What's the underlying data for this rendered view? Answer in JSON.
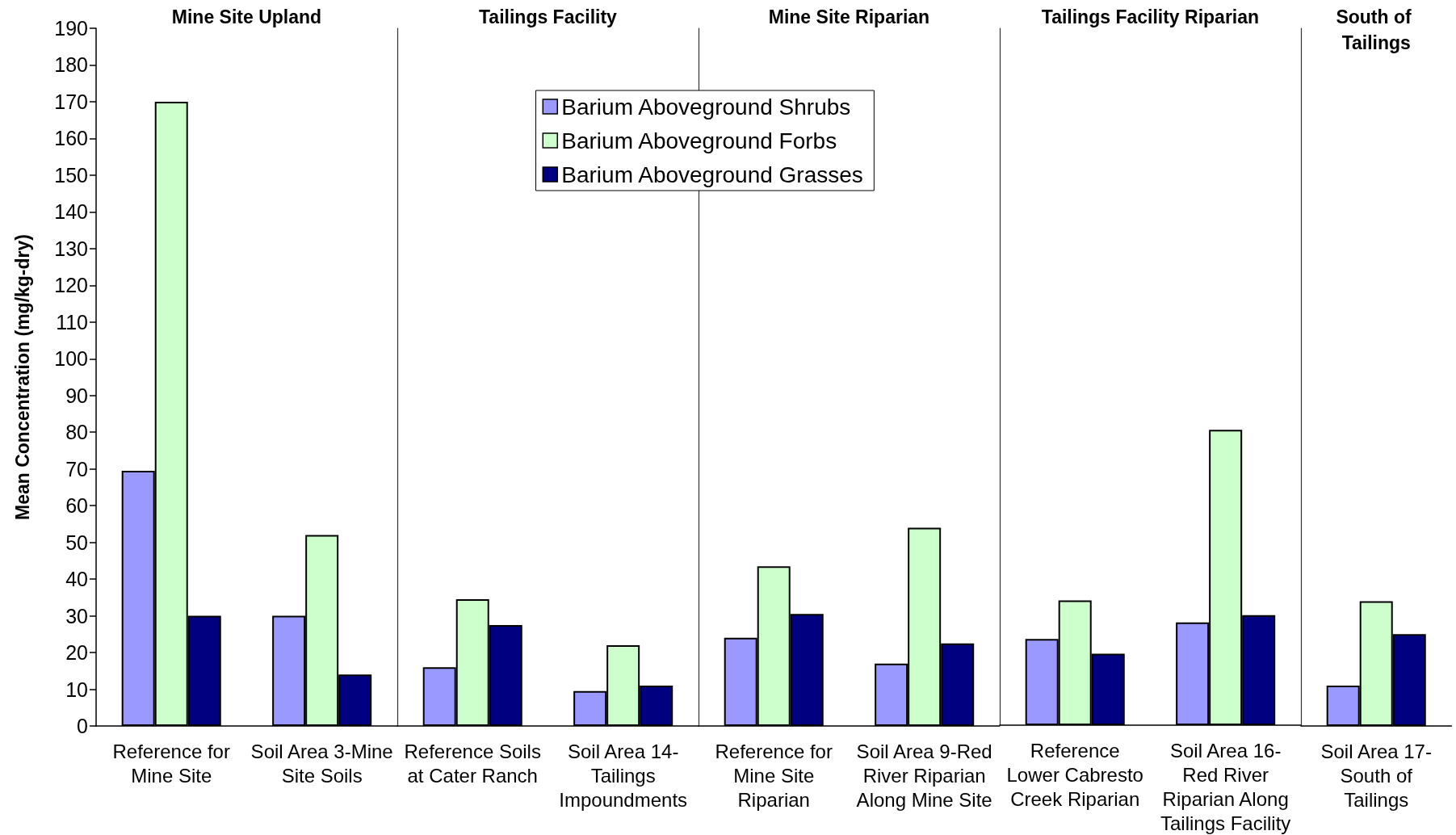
{
  "chart_data": [
    {
      "type": "bar",
      "title": "Mine Site Upland",
      "ylabel": "Mean Concentration (mg/kg-dry)",
      "categories": [
        "Reference for Mine Site",
        "Soil Area 3-Mine Site Soils"
      ],
      "series": [
        {
          "color": "#9999ff",
          "values": [
            69.5,
            30
          ]
        },
        {
          "color": "#ccffcc",
          "values": [
            170,
            52
          ]
        },
        {
          "color": "#000080",
          "values": [
            30,
            14
          ]
        }
      ],
      "ylim": [
        0,
        190
      ],
      "yticks": [
        0,
        10,
        20,
        30,
        40,
        50,
        60,
        70,
        80,
        90,
        100,
        110,
        120,
        130,
        140,
        150,
        160,
        170,
        180,
        190
      ]
    },
    {
      "type": "bar",
      "title": "Tailings Facility",
      "categories": [
        "Reference Soils at Cater Ranch",
        "Soil Area 14-Tailings Impoundments"
      ],
      "series": [
        {
          "name": "Barium Aboveground Shrubs",
          "color": "#9999ff",
          "values": [
            16,
            9.5
          ]
        },
        {
          "name": "Barium Aboveground Forbs",
          "color": "#ccffcc",
          "values": [
            34.5,
            22
          ]
        },
        {
          "name": "Barium Aboveground Grasses",
          "color": "#000080",
          "values": [
            27.5,
            11
          ]
        }
      ],
      "ylim": [
        0,
        190
      ],
      "tick_labels": "x",
      "legend": "top right"
    },
    {
      "type": "bar",
      "title": "Mine Site Riparian",
      "categories": [
        "Reference for Mine Site Riparian",
        "Soil Area 9-Red River Riparian Along Mine Site"
      ],
      "series": [
        {
          "color": "#9999ff",
          "values": [
            24,
            17
          ]
        },
        {
          "color": "#ccffcc",
          "values": [
            43.5,
            54
          ]
        },
        {
          "color": "#000080",
          "values": [
            30.5,
            22.5
          ]
        }
      ],
      "ylim": [
        0,
        190
      ],
      "tick_labels": "x"
    },
    {
      "type": "bar",
      "title": "Tailings Facility Riparian",
      "categories": [
        "Reference Lower Cabresto Creek Riparian",
        "Soil Area 16-Red River Riparian Along Tailings Facility"
      ],
      "series": [
        {
          "color": "#9999ff",
          "values": [
            23.5,
            28
          ]
        },
        {
          "color": "#ccffcc",
          "values": [
            34,
            80.5
          ]
        },
        {
          "color": "#000080",
          "values": [
            19.5,
            30
          ]
        }
      ],
      "ylim": [
        0,
        190
      ],
      "tick_labels": "x"
    },
    {
      "type": "bar",
      "title": "South of Tailings",
      "categories": [
        "Soil Area 17-South of Tailings"
      ],
      "series": [
        {
          "color": "#9999ff",
          "values": [
            11
          ]
        },
        {
          "color": "#ccffcc",
          "values": [
            34
          ]
        },
        {
          "color": "#000080",
          "values": [
            25
          ]
        }
      ],
      "ylim": [
        0,
        190
      ],
      "tick_labels": "x"
    }
  ]
}
